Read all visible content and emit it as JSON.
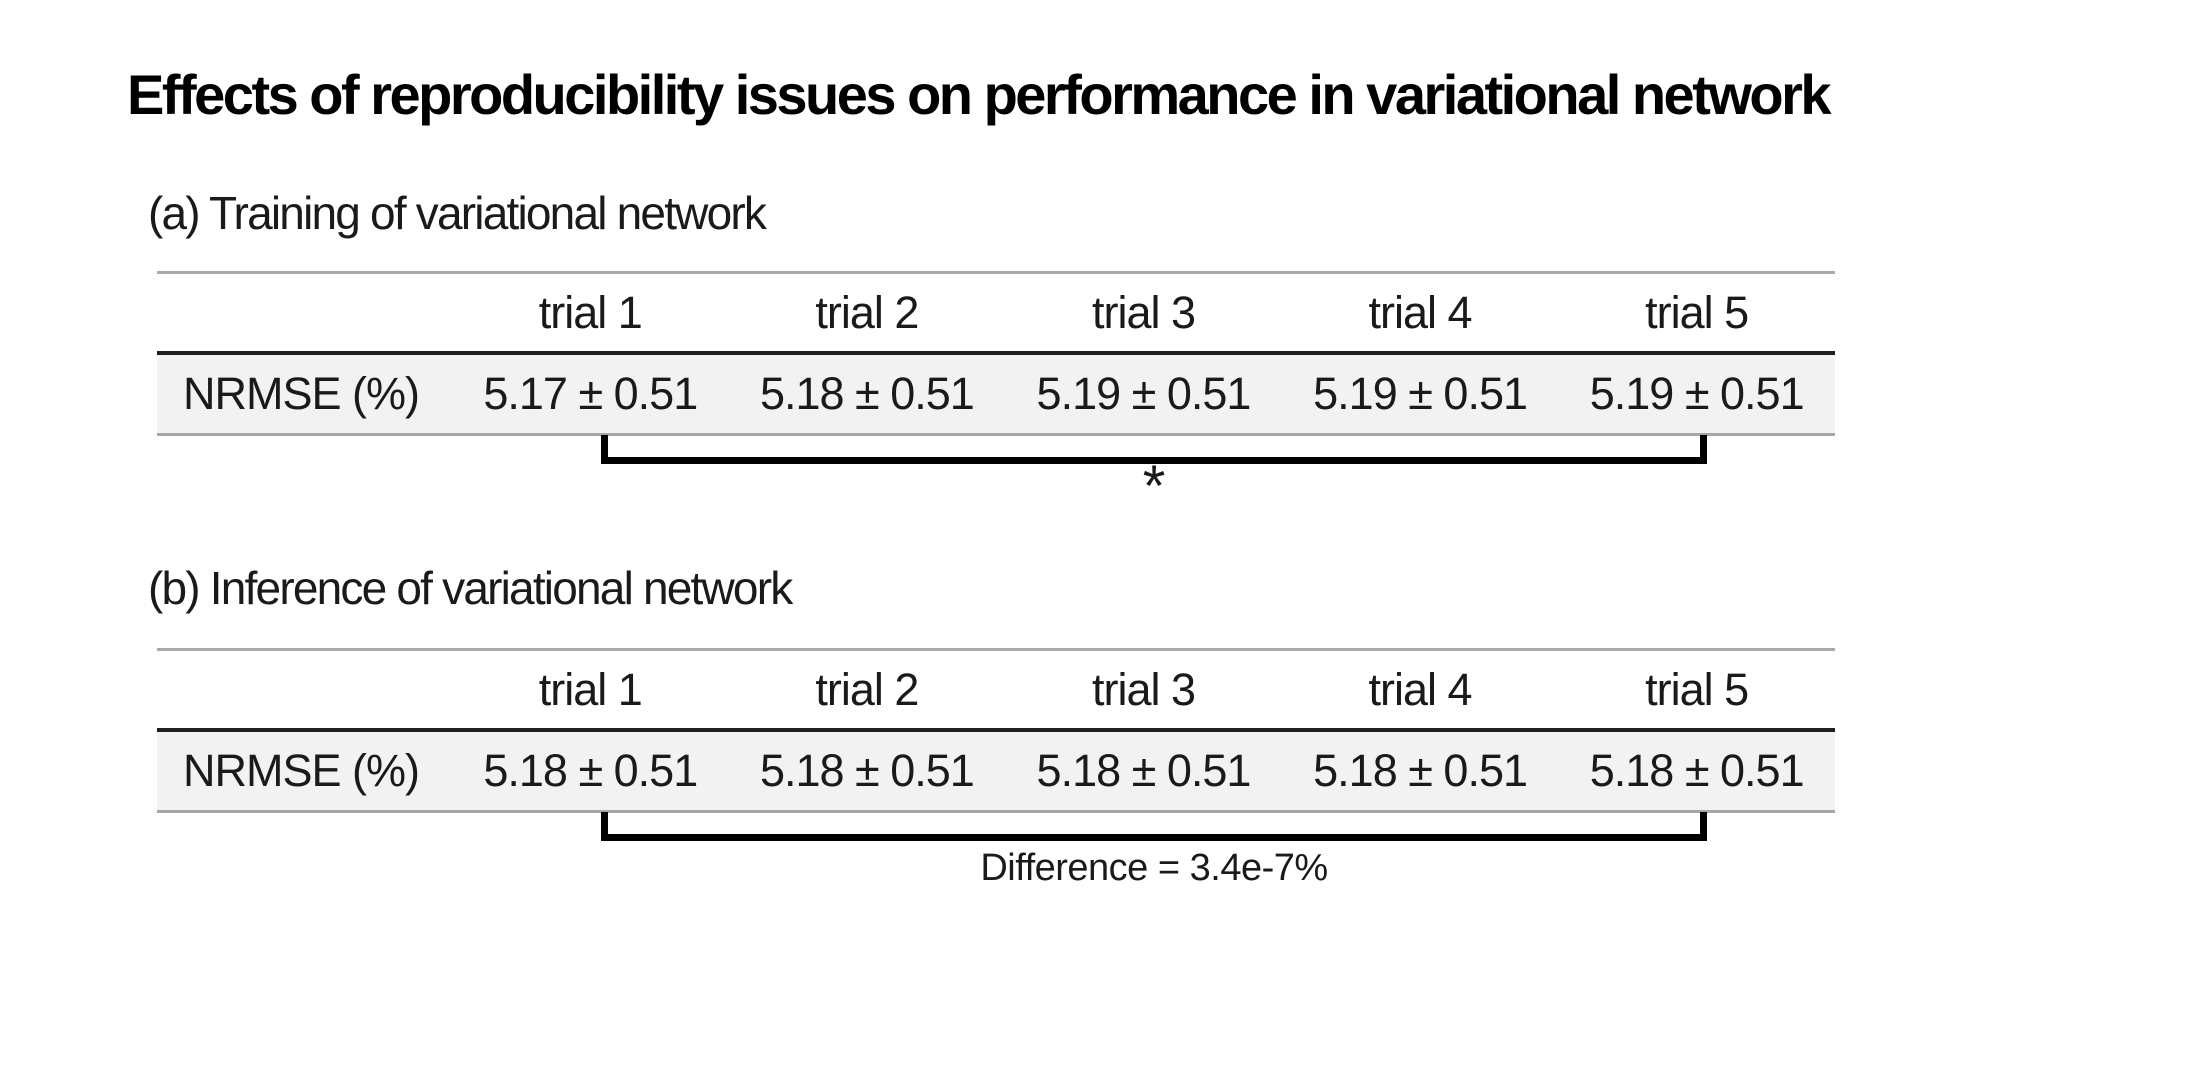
{
  "figure": {
    "title": "Effects of reproducibility issues on performance in variational network"
  },
  "sections": [
    {
      "label": "(a) Training of variational network",
      "table": {
        "row_header": "NRMSE (%)",
        "columns": [
          "trial 1",
          "trial 2",
          "trial 3",
          "trial 4",
          "trial 5"
        ],
        "values": [
          "5.17 ± 0.51",
          "5.18 ± 0.51",
          "5.19 ± 0.51",
          "5.19 ± 0.51",
          "5.19 ± 0.51"
        ]
      },
      "annotation": "*"
    },
    {
      "label": "(b) Inference of variational network",
      "table": {
        "row_header": "NRMSE (%)",
        "columns": [
          "trial 1",
          "trial 2",
          "trial 3",
          "trial 4",
          "trial 5"
        ],
        "values": [
          "5.18 ± 0.51",
          "5.18 ± 0.51",
          "5.18 ± 0.51",
          "5.18 ± 0.51",
          "5.18 ± 0.51"
        ]
      },
      "annotation": "Difference = 3.4e-7%"
    }
  ],
  "colors": {
    "background": "#ffffff",
    "text": "#1a1a1a",
    "row_shade": "#f2f2f2",
    "grid_light": "#a6a6a6",
    "grid_dark": "#1f1f1f",
    "bracket": "#000000"
  },
  "chart_data": {
    "type": "table",
    "title": "Effects of reproducibility issues on performance in variational network",
    "tables": [
      {
        "caption": "(a) Training of variational network",
        "columns": [
          "",
          "trial 1",
          "trial 2",
          "trial 3",
          "trial 4",
          "trial 5"
        ],
        "rows": [
          [
            "NRMSE (%)",
            "5.17 ± 0.51",
            "5.18 ± 0.51",
            "5.19 ± 0.51",
            "5.19 ± 0.51",
            "5.19 ± 0.51"
          ]
        ],
        "bracket_span": [
          "trial 1",
          "trial 5"
        ],
        "annotation": "*"
      },
      {
        "caption": "(b) Inference of variational network",
        "columns": [
          "",
          "trial 1",
          "trial 2",
          "trial 3",
          "trial 4",
          "trial 5"
        ],
        "rows": [
          [
            "NRMSE (%)",
            "5.18 ± 0.51",
            "5.18 ± 0.51",
            "5.18 ± 0.51",
            "5.18 ± 0.51",
            "5.18 ± 0.51"
          ]
        ],
        "bracket_span": [
          "trial 1",
          "trial 5"
        ],
        "annotation": "Difference = 3.4e-7%"
      }
    ]
  }
}
